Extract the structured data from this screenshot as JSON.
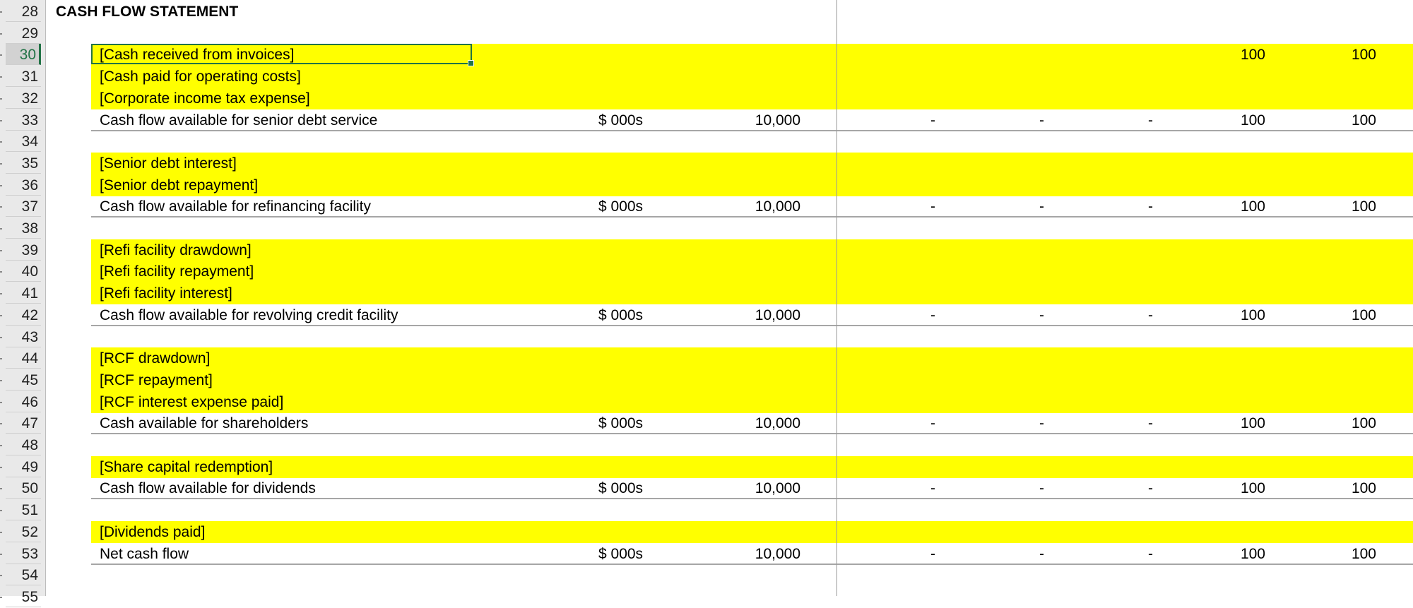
{
  "sheet": {
    "title_row": 28,
    "title": "CASH FLOW STATEMENT",
    "active_row": 30,
    "colors": {
      "input_fill": "#ffff00",
      "selection": "#217346",
      "rule": "#a6a6a6"
    },
    "rows": [
      {
        "n": "28",
        "type": "title"
      },
      {
        "n": "29",
        "type": "blank"
      },
      {
        "n": "30",
        "type": "input",
        "label": "[Cash received from invoices]",
        "values": [
          "",
          "",
          "",
          "100",
          "100"
        ]
      },
      {
        "n": "31",
        "type": "input",
        "label": "[Cash paid for operating costs]"
      },
      {
        "n": "32",
        "type": "input",
        "label": "[Corporate income tax expense]"
      },
      {
        "n": "33",
        "type": "total",
        "label": "Cash flow available for senior debt service",
        "unit": "$ 000s",
        "total": "10,000",
        "values": [
          "-",
          "-",
          "-",
          "100",
          "100"
        ]
      },
      {
        "n": "34",
        "type": "blank"
      },
      {
        "n": "35",
        "type": "input",
        "label": "[Senior debt interest]"
      },
      {
        "n": "36",
        "type": "input",
        "label": "[Senior debt repayment]"
      },
      {
        "n": "37",
        "type": "total",
        "label": "Cash flow available for refinancing facility",
        "unit": "$ 000s",
        "total": "10,000",
        "values": [
          "-",
          "-",
          "-",
          "100",
          "100"
        ]
      },
      {
        "n": "38",
        "type": "blank"
      },
      {
        "n": "39",
        "type": "input",
        "label": "[Refi facility drawdown]"
      },
      {
        "n": "40",
        "type": "input",
        "label": "[Refi facility repayment]"
      },
      {
        "n": "41",
        "type": "input",
        "label": "[Refi facility interest]"
      },
      {
        "n": "42",
        "type": "total",
        "label": "Cash flow available for revolving credit facility",
        "unit": "$ 000s",
        "total": "10,000",
        "values": [
          "-",
          "-",
          "-",
          "100",
          "100"
        ]
      },
      {
        "n": "43",
        "type": "blank"
      },
      {
        "n": "44",
        "type": "input",
        "label": "[RCF drawdown]"
      },
      {
        "n": "45",
        "type": "input",
        "label": "[RCF repayment]"
      },
      {
        "n": "46",
        "type": "input",
        "label": "[RCF interest expense paid]"
      },
      {
        "n": "47",
        "type": "total",
        "label": "Cash available for shareholders",
        "unit": "$ 000s",
        "total": "10,000",
        "values": [
          "-",
          "-",
          "-",
          "100",
          "100"
        ]
      },
      {
        "n": "48",
        "type": "blank"
      },
      {
        "n": "49",
        "type": "input",
        "label": "[Share capital redemption]"
      },
      {
        "n": "50",
        "type": "total",
        "label": "Cash flow available for dividends",
        "unit": "$ 000s",
        "total": "10,000",
        "values": [
          "-",
          "-",
          "-",
          "100",
          "100"
        ]
      },
      {
        "n": "51",
        "type": "blank"
      },
      {
        "n": "52",
        "type": "input",
        "label": "[Dividends paid]"
      },
      {
        "n": "53",
        "type": "total",
        "label": "Net cash flow",
        "unit": "$ 000s",
        "total": "10,000",
        "values": [
          "-",
          "-",
          "-",
          "100",
          "100"
        ]
      },
      {
        "n": "54",
        "type": "blank"
      },
      {
        "n": "55",
        "type": "blank"
      }
    ]
  }
}
